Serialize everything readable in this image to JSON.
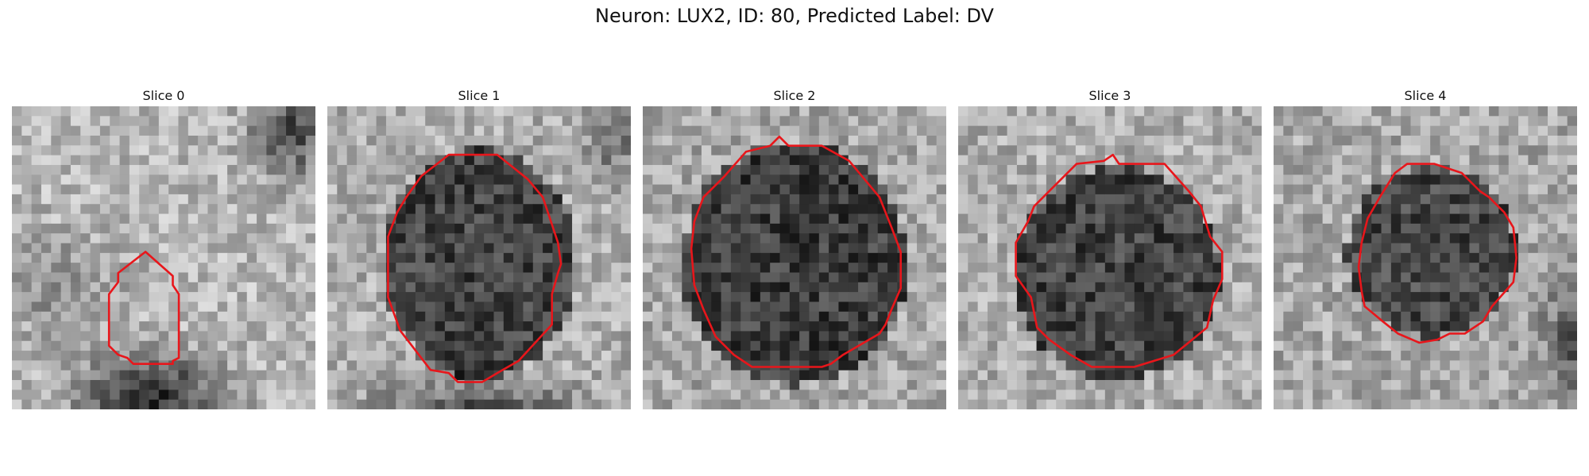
{
  "figure": {
    "title": "Neuron: LUX2, ID: 80, Predicted Label: DV"
  },
  "panels": [
    {
      "title": "Slice 0"
    },
    {
      "title": "Slice 1"
    },
    {
      "title": "Slice 2"
    },
    {
      "title": "Slice 3"
    },
    {
      "title": "Slice 4"
    }
  ],
  "colors": {
    "contour": "#e8161b",
    "background": "#ffffff"
  }
}
